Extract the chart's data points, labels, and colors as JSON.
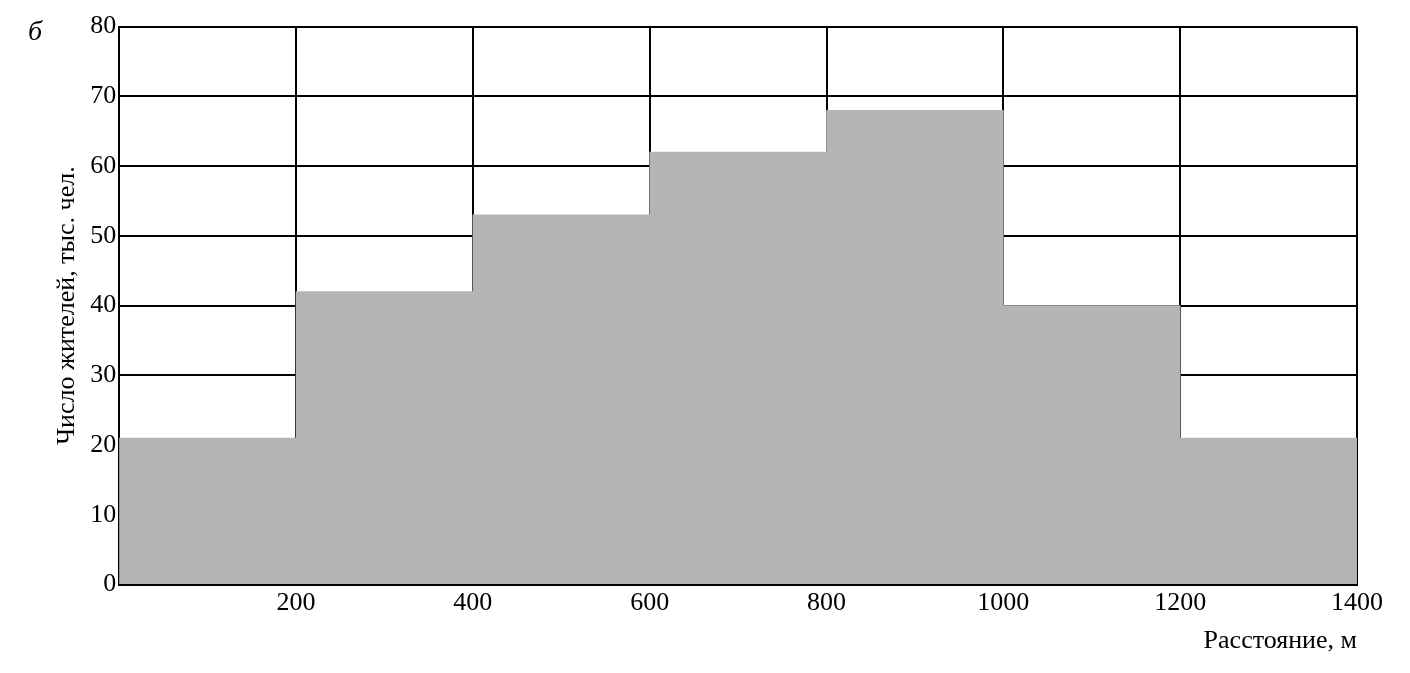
{
  "chart_data": {
    "type": "histogram",
    "xlabel": "Расстояние, м",
    "ylabel": "Число жителей, тыс. чел.",
    "annotations": [
      "б"
    ],
    "bins": [
      0,
      200,
      400,
      600,
      800,
      1000,
      1200,
      1400
    ],
    "values": [
      21,
      42,
      53,
      62,
      68,
      40,
      21
    ],
    "color": "#b4b4b4",
    "xlim": [
      0,
      1400
    ],
    "xticks": [
      {
        "value": 0,
        "label": null
      },
      200,
      400,
      600,
      800,
      1000,
      1200,
      1400
    ],
    "ylim": [
      0,
      80
    ],
    "yticks": [
      0,
      10,
      20,
      30,
      40,
      50,
      60,
      70,
      80
    ],
    "grid": true
  }
}
